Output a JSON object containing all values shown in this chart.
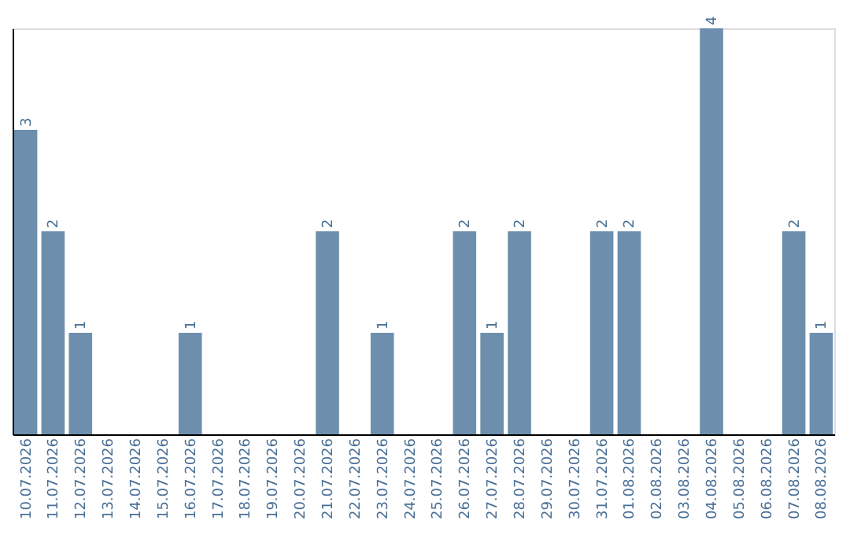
{
  "chart_data": {
    "type": "bar",
    "categories": [
      "10.07.2026",
      "11.07.2026",
      "12.07.2026",
      "13.07.2026",
      "14.07.2026",
      "15.07.2026",
      "16.07.2026",
      "17.07.2026",
      "18.07.2026",
      "19.07.2026",
      "20.07.2026",
      "21.07.2026",
      "22.07.2026",
      "23.07.2026",
      "24.07.2026",
      "25.07.2026",
      "26.07.2026",
      "27.07.2026",
      "28.07.2026",
      "29.07.2026",
      "30.07.2026",
      "31.07.2026",
      "01.08.2026",
      "02.08.2026",
      "03.08.2026",
      "04.08.2026",
      "05.08.2026",
      "06.08.2026",
      "07.08.2026",
      "08.08.2026"
    ],
    "values": [
      3,
      2,
      1,
      0,
      0,
      0,
      1,
      0,
      0,
      0,
      0,
      2,
      0,
      1,
      0,
      0,
      2,
      1,
      2,
      0,
      0,
      2,
      2,
      0,
      0,
      4,
      0,
      0,
      2,
      1
    ],
    "value_labels": [
      "3",
      "2",
      "1",
      null,
      null,
      null,
      "1",
      null,
      null,
      null,
      null,
      "2",
      null,
      "1",
      null,
      null,
      "2",
      "1",
      "2",
      null,
      null,
      "2",
      "2",
      null,
      null,
      "4",
      null,
      null,
      "2",
      "1"
    ],
    "color": "#6d8fad",
    "ylim": [
      0,
      4
    ],
    "tick_labels": "x",
    "grid": false
  }
}
